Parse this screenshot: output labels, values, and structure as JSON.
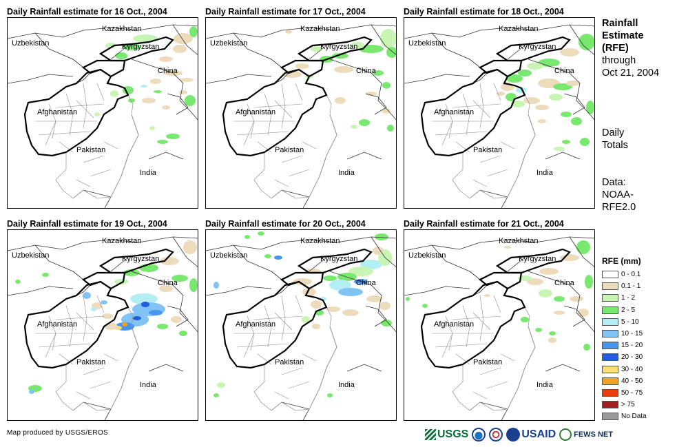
{
  "panels": [
    {
      "title": "Daily Rainfall estimate for 16 Oct., 2004",
      "rain": "d16"
    },
    {
      "title": "Daily Rainfall estimate for 17 Oct., 2004",
      "rain": "d17"
    },
    {
      "title": "Daily Rainfall estimate for 18 Oct., 2004",
      "rain": "d18"
    },
    {
      "title": "Daily Rainfall estimate for 19 Oct., 2004",
      "rain": "d19"
    },
    {
      "title": "Daily Rainfall estimate for 20 Oct., 2004",
      "rain": "d20"
    },
    {
      "title": "Daily Rainfall estimate for 21 Oct., 2004",
      "rain": "d21"
    }
  ],
  "map_labels": {
    "kazakhstan": "Kazakhstan",
    "uzbekistan": "Uzbekistan",
    "kyrgyzstan": "Kyrgyzstan",
    "china": "China",
    "afghanistan": "Afghanistan",
    "pakistan": "Pakistan",
    "india": "India"
  },
  "side": {
    "title_line1": "Rainfall",
    "title_line2": "Estimate",
    "title_line3": "(RFE)",
    "title_line4": "through",
    "title_line5": "Oct 21, 2004",
    "daily_line1": "Daily",
    "daily_line2": "Totals",
    "data_line1": "Data:",
    "data_line2": "NOAA-",
    "data_line3": "RFE2.0"
  },
  "legend": {
    "title": "RFE (mm)",
    "items": [
      {
        "label": "0 - 0.1",
        "color": "#ffffff"
      },
      {
        "label": "0.1 - 1",
        "color": "#ecdcbc"
      },
      {
        "label": "1 - 2",
        "color": "#c8f5b4"
      },
      {
        "label": "2 - 5",
        "color": "#78e86e"
      },
      {
        "label": "5 - 10",
        "color": "#b4eef5"
      },
      {
        "label": "10 - 15",
        "color": "#82c3f5"
      },
      {
        "label": "15 - 20",
        "color": "#4696f0"
      },
      {
        "label": "20 - 30",
        "color": "#1f5fdc"
      },
      {
        "label": "30 - 40",
        "color": "#fadc78"
      },
      {
        "label": "40 - 50",
        "color": "#f5a01e"
      },
      {
        "label": "50 - 75",
        "color": "#f03c0a"
      },
      {
        "label": "> 75",
        "color": "#a51e1e"
      },
      {
        "label": "No Data",
        "color": "#9a9a9a"
      }
    ]
  },
  "footer": {
    "credit": "Map produced by USGS/EROS",
    "usgs": "USGS",
    "usaid": "USAID",
    "fews": "FEWS NET"
  }
}
